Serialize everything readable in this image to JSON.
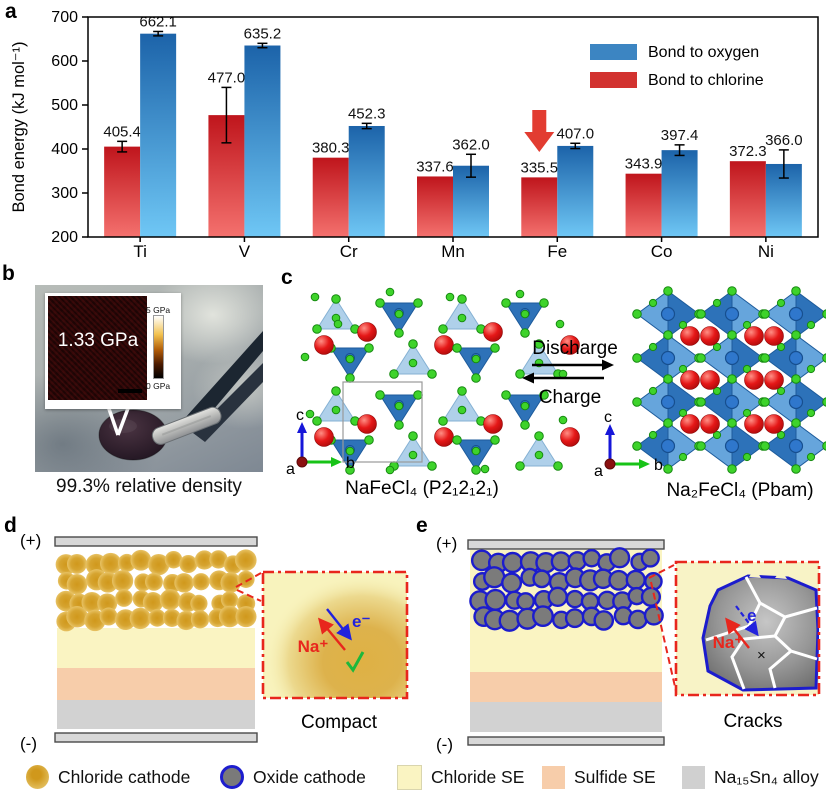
{
  "panel_letters": {
    "a": "a",
    "b": "b",
    "c": "c",
    "d": "d",
    "e": "e"
  },
  "chart_data": {
    "type": "bar",
    "title": "",
    "ylabel": "Bond energy (kJ mol⁻¹)",
    "xlabel": "",
    "ylim": [
      200,
      700
    ],
    "yticks": [
      200,
      300,
      400,
      500,
      600,
      700
    ],
    "categories": [
      "Ti",
      "V",
      "Cr",
      "Mn",
      "Fe",
      "Co",
      "Ni"
    ],
    "series": [
      {
        "name": "Bond to chlorine",
        "values": [
          405.4,
          477.0,
          380.3,
          337.6,
          335.5,
          343.9,
          372.3
        ],
        "errors": [
          12,
          63,
          0,
          0,
          0,
          0,
          0
        ],
        "bar_color_top": "#bf151c",
        "bar_color_bottom": "#f4716e",
        "legend_color": "#d2322f"
      },
      {
        "name": "Bond to oxygen",
        "values": [
          662.1,
          635.2,
          452.3,
          362.0,
          407.0,
          397.4,
          366.0
        ],
        "errors": [
          5,
          5,
          6,
          26,
          6,
          12,
          32
        ],
        "bar_color_top": "#1c63a9",
        "bar_color_bottom": "#6fc7f5",
        "legend_color": "#3c85c2"
      }
    ],
    "legend_order": [
      1,
      0
    ],
    "legend_position": "top-right",
    "grid": false,
    "annotation": {
      "shape": "down-arrow",
      "category": "Fe",
      "series": 0,
      "color": "#e23c31"
    }
  },
  "panel_b": {
    "inset_value": "1.33 GPa",
    "scale_max": "5 GPa",
    "scale_min": "0 GPa",
    "caption": "99.3% relative density"
  },
  "panel_c": {
    "left_label": "NaFeCl₄ (P2₁2₁2₁)",
    "right_label": "Na₂FeCl₄ (Pbam)",
    "discharge": "Discharge",
    "charge": "Charge",
    "axis": {
      "a": "a",
      "b": "b",
      "c": "c"
    }
  },
  "panel_d": {
    "plus": "(+)",
    "minus": "(-)",
    "na_label": "Na⁺",
    "e_label": "e⁻",
    "inset_label": "Compact"
  },
  "panel_e": {
    "plus": "(+)",
    "minus": "(-)",
    "na_label": "Na⁺",
    "e_label": "e",
    "cross": "×",
    "inset_label": "Cracks"
  },
  "legend": {
    "items": [
      {
        "label": "Chloride cathode",
        "swatch": "gold-circle"
      },
      {
        "label": "Oxide cathode",
        "swatch": "gray-blue-circle"
      },
      {
        "label": "Chloride SE",
        "swatch": "pale-yellow-square"
      },
      {
        "label": "Sulfide SE",
        "swatch": "peach-square"
      },
      {
        "label": "Na₁₅Sn₄ alloy",
        "swatch": "gray-square"
      }
    ],
    "item_lefts": [
      26,
      220,
      397,
      542,
      682
    ]
  },
  "colors": {
    "chloride_se": "#faf4c2",
    "sulfide_se": "#f7cdaa",
    "alloy": "#d2d2d2",
    "electrode": "#d8d8d8",
    "electrode_border": "#4a4a4a",
    "gold_core": "#d0981c",
    "gold_rim": "#eccc74",
    "oxide_fill": "#7b7b7b",
    "oxide_ring": "#1c1ccd",
    "inset_border": "#e8261d",
    "na_color": "#e8261d",
    "e_color": "#2222dd",
    "check_color": "#1db83c",
    "crack_color": "#ffffff",
    "tetra_light": "#a9cde9",
    "tetra_dark": "#2e72b8",
    "octa_light": "#66a5dc",
    "octa_dark": "#2d72b9",
    "cl_atom": "#3ed32b",
    "cl_atom_edge": "#168a10",
    "fe_atom": "#2f77cc",
    "axis_b_green": "#17c317",
    "axis_c_blue": "#1616d9",
    "axis_a_red": "#8b1010"
  }
}
